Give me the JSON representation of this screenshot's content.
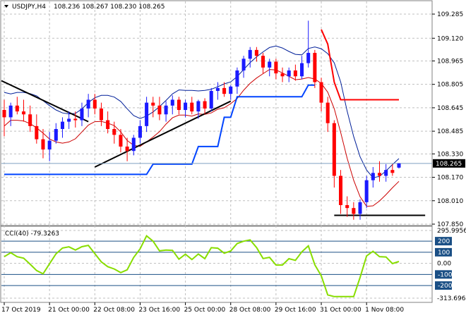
{
  "header": {
    "symbol": "USDJPY,H4",
    "ohlc": "108.236 108.267 108.230 108.265"
  },
  "indicator": {
    "label": "CCI(40) -79.3263"
  },
  "colors": {
    "bull": "#1a1aff",
    "bear": "#ff0000",
    "grid": "#bfbfbf",
    "bollinger_upper": "#001f99",
    "bollinger_mid": "#cc0000",
    "support_line": "#0044ff",
    "resistance_line": "#ff0000",
    "trendline": "#000000",
    "cci_line": "#88dd00",
    "cci_level_fill": "#1a4f85"
  },
  "chart_data": [
    {
      "type": "candlestick",
      "title": "USDJPY,H4",
      "ylim": [
        107.85,
        109.285
      ],
      "y_ticks": [
        "109.285",
        "109.120",
        "108.965",
        "108.805",
        "108.645",
        "108.485",
        "108.330",
        "108.170",
        "108.010",
        "107.850"
      ],
      "current_price": "108.265",
      "x_ticks": [
        "17 Oct 2019",
        "21 Oct 00:00",
        "22 Oct 08:00",
        "23 Oct 16:00",
        "25 Oct 00:00",
        "28 Oct 08:00",
        "29 Oct 16:00",
        "31 Oct 00:00",
        "1 Nov 08:00"
      ],
      "candles": [
        [
          108.63,
          108.7,
          108.45,
          108.58
        ],
        [
          108.58,
          108.68,
          108.52,
          108.66
        ],
        [
          108.66,
          108.72,
          108.6,
          108.62
        ],
        [
          108.62,
          108.7,
          108.55,
          108.6
        ],
        [
          108.6,
          108.66,
          108.48,
          108.52
        ],
        [
          108.52,
          108.6,
          108.4,
          108.43
        ],
        [
          108.43,
          108.5,
          108.3,
          108.36
        ],
        [
          108.36,
          108.48,
          108.28,
          108.42
        ],
        [
          108.42,
          108.54,
          108.4,
          108.5
        ],
        [
          108.5,
          108.58,
          108.44,
          108.55
        ],
        [
          108.55,
          108.62,
          108.5,
          108.57
        ],
        [
          108.57,
          108.62,
          108.51,
          108.56
        ],
        [
          108.56,
          108.68,
          108.52,
          108.64
        ],
        [
          108.64,
          108.74,
          108.58,
          108.7
        ],
        [
          108.7,
          108.74,
          108.6,
          108.64
        ],
        [
          108.64,
          108.68,
          108.52,
          108.56
        ],
        [
          108.56,
          108.62,
          108.47,
          108.5
        ],
        [
          108.5,
          108.55,
          108.4,
          108.46
        ],
        [
          108.46,
          108.5,
          108.34,
          108.38
        ],
        [
          108.38,
          108.44,
          108.28,
          108.35
        ],
        [
          108.35,
          108.46,
          108.32,
          108.44
        ],
        [
          108.44,
          108.56,
          108.4,
          108.52
        ],
        [
          108.52,
          108.72,
          108.48,
          108.68
        ],
        [
          108.68,
          108.72,
          108.58,
          108.66
        ],
        [
          108.66,
          108.72,
          108.56,
          108.6
        ],
        [
          108.6,
          108.69,
          108.55,
          108.66
        ],
        [
          108.66,
          108.73,
          108.6,
          108.7
        ],
        [
          108.7,
          108.72,
          108.6,
          108.63
        ],
        [
          108.63,
          108.7,
          108.58,
          108.68
        ],
        [
          108.68,
          108.72,
          108.6,
          108.62
        ],
        [
          108.62,
          108.7,
          108.57,
          108.69
        ],
        [
          108.69,
          108.71,
          108.6,
          108.64
        ],
        [
          108.64,
          108.78,
          108.62,
          108.76
        ],
        [
          108.76,
          108.82,
          108.7,
          108.78
        ],
        [
          108.78,
          108.82,
          108.72,
          108.74
        ],
        [
          108.74,
          108.8,
          108.7,
          108.79
        ],
        [
          108.79,
          108.92,
          108.74,
          108.9
        ],
        [
          108.9,
          109.0,
          108.85,
          108.98
        ],
        [
          108.98,
          109.06,
          108.92,
          109.04
        ],
        [
          109.04,
          109.06,
          108.96,
          109.0
        ],
        [
          109.0,
          109.02,
          108.88,
          108.92
        ],
        [
          108.92,
          108.98,
          108.86,
          108.96
        ],
        [
          108.96,
          108.98,
          108.84,
          108.88
        ],
        [
          108.88,
          108.92,
          108.82,
          108.86
        ],
        [
          108.86,
          108.92,
          108.82,
          108.9
        ],
        [
          108.9,
          108.94,
          108.83,
          108.86
        ],
        [
          108.86,
          109.0,
          108.84,
          108.95
        ],
        [
          108.95,
          109.24,
          108.92,
          109.02
        ],
        [
          109.02,
          109.04,
          108.78,
          108.82
        ],
        [
          108.82,
          108.85,
          108.62,
          108.68
        ],
        [
          108.68,
          108.72,
          108.48,
          108.54
        ],
        [
          108.54,
          108.56,
          108.1,
          108.18
        ],
        [
          108.18,
          108.22,
          107.92,
          107.98
        ],
        [
          107.98,
          108.04,
          107.9,
          107.96
        ],
        [
          107.96,
          108.0,
          107.88,
          107.92
        ],
        [
          107.92,
          108.02,
          107.88,
          108.0
        ],
        [
          108.0,
          108.18,
          107.96,
          108.15
        ],
        [
          108.15,
          108.24,
          108.1,
          108.2
        ],
        [
          108.2,
          108.28,
          108.14,
          108.18
        ],
        [
          108.18,
          108.26,
          108.14,
          108.22
        ],
        [
          108.22,
          108.26,
          108.18,
          108.2
        ],
        [
          108.236,
          108.267,
          108.23,
          108.265
        ]
      ]
    },
    {
      "type": "line",
      "title": "CCI(40) -79.3263",
      "ylim": [
        -313.696,
        295.9956
      ],
      "y_ticks": [
        "295.9956",
        "200",
        "100",
        "0.00",
        "-100",
        "-200",
        "-313.696"
      ],
      "levels": [
        200,
        100,
        -100,
        -200
      ]
    }
  ]
}
